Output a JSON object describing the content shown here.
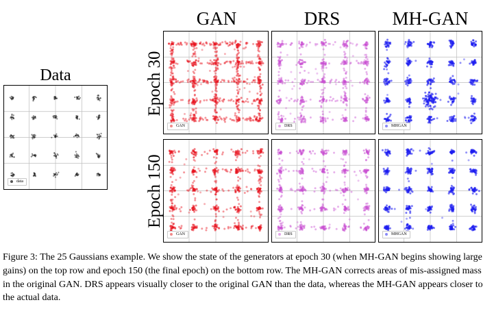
{
  "figure": {
    "data_title": "Data",
    "columns": [
      "GAN",
      "DRS",
      "MH-GAN"
    ],
    "rows": [
      "Epoch 30",
      "Epoch 150"
    ],
    "data_legend": "data",
    "legends": [
      "GAN",
      "DRS",
      "MHGAN"
    ],
    "colors": {
      "data": "#222222",
      "GAN": "#e8131d",
      "DRS": "#c84fd2",
      "MHGAN": "#1c1cf0",
      "grid": "#bdbdbd"
    }
  },
  "caption": {
    "text": "Figure 3: The 25 Gaussians example. We show the state of the generators at epoch 30 (when MH-GAN begins showing large gains) on the top row and epoch 150 (the final epoch) on the bottom row. The MH-GAN corrects areas of mis-assigned mass in the original GAN. DRS appears visually closer to the original GAN than the data, whereas the MH-GAN appears closer to the actual data."
  }
}
